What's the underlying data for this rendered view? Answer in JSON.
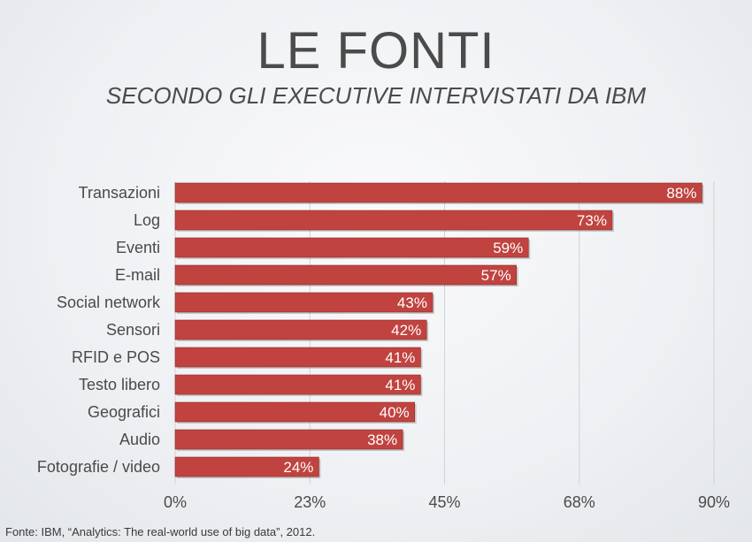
{
  "header": {
    "title": "LE FONTI",
    "subtitle": "SECONDO GLI EXECUTIVE INTERVISTATI DA IBM"
  },
  "footer": {
    "source": "Fonte: IBM, “Analytics: The real-world use of big data”, 2012."
  },
  "colors": {
    "bar": "#c0433f",
    "bar_edge": "#8e2b28",
    "grid": "#d0d3d7",
    "text": "#4a4a4a",
    "label_text": "#ffffff"
  },
  "chart_data": {
    "type": "bar",
    "orientation": "horizontal",
    "categories": [
      "Transazioni",
      "Log",
      "Eventi",
      "E-mail",
      "Social network",
      "Sensori",
      "RFID e POS",
      "Testo libero",
      "Geografici",
      "Audio",
      "Fotografie / video"
    ],
    "values": [
      88,
      73,
      59,
      57,
      43,
      42,
      41,
      41,
      40,
      38,
      24
    ],
    "value_labels": [
      "88%",
      "73%",
      "59%",
      "57%",
      "43%",
      "42%",
      "41%",
      "41%",
      "40%",
      "38%",
      "24%"
    ],
    "xlim": [
      0,
      90
    ],
    "x_ticks": [
      0,
      22.5,
      45,
      67.5,
      90
    ],
    "x_tick_labels": [
      "0%",
      "23%",
      "45%",
      "68%",
      "90%"
    ],
    "grid": true
  }
}
